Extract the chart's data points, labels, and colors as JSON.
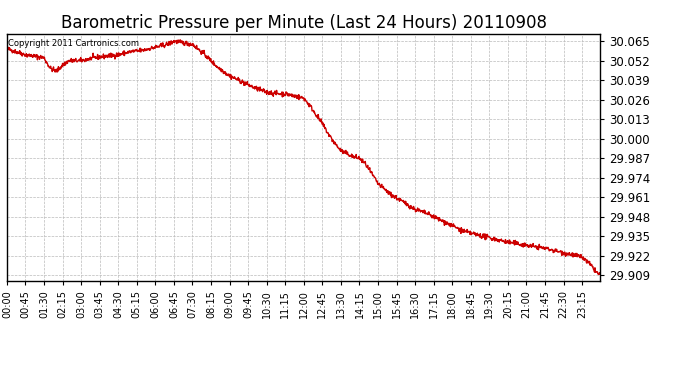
{
  "title": "Barometric Pressure per Minute (Last 24 Hours) 20110908",
  "copyright_text": "Copyright 2011 Cartronics.com",
  "line_color": "#cc0000",
  "background_color": "#ffffff",
  "plot_bg_color": "#ffffff",
  "grid_color": "#bbbbbb",
  "yticks": [
    29.909,
    29.922,
    29.935,
    29.948,
    29.961,
    29.974,
    29.987,
    30.0,
    30.013,
    30.026,
    30.039,
    30.052,
    30.065
  ],
  "ylim": [
    29.905,
    30.07
  ],
  "xtick_labels": [
    "00:00",
    "00:45",
    "01:30",
    "02:15",
    "03:00",
    "03:45",
    "04:30",
    "05:15",
    "06:00",
    "06:45",
    "07:30",
    "08:15",
    "09:00",
    "09:45",
    "10:30",
    "11:15",
    "12:00",
    "12:45",
    "13:30",
    "14:15",
    "15:00",
    "15:45",
    "16:30",
    "17:15",
    "18:00",
    "18:45",
    "19:30",
    "20:15",
    "21:00",
    "21:45",
    "22:30",
    "23:15"
  ],
  "title_fontsize": 12,
  "axis_fontsize": 7,
  "line_width": 1.0,
  "figsize": [
    6.9,
    3.75
  ],
  "dpi": 100
}
